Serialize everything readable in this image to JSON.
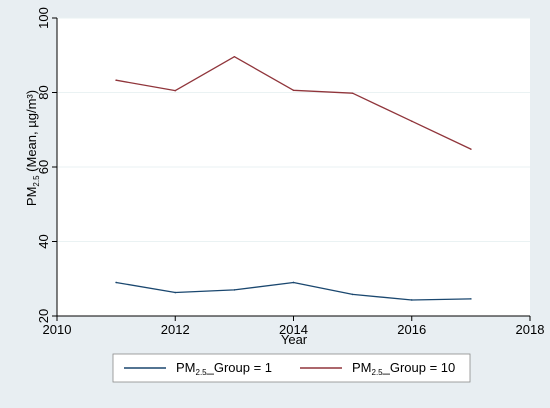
{
  "chart_data": {
    "type": "line",
    "xlabel": "Year",
    "ylabel": {
      "prefix": "PM",
      "subscript": "2.5",
      "suffix": " (Mean, µg/m³)"
    },
    "xlim": [
      2010,
      2018
    ],
    "ylim": [
      20,
      100
    ],
    "xticks": [
      2010,
      2012,
      2014,
      2016,
      2018
    ],
    "yticks": [
      20,
      40,
      60,
      80,
      100
    ],
    "grid": "horizontal",
    "legend_position": "bottom",
    "series": [
      {
        "name": {
          "prefix": "PM",
          "subscript": "2.5",
          "suffix": "_Group = 1"
        },
        "color": "#1a476f",
        "x": [
          2011,
          2012,
          2013,
          2014,
          2015,
          2016,
          2017
        ],
        "y": [
          29.0,
          26.3,
          27.0,
          29.0,
          25.8,
          24.3,
          24.6
        ]
      },
      {
        "name": {
          "prefix": "PM",
          "subscript": "2.5",
          "suffix": "_Group = 10"
        },
        "color": "#90353b",
        "x": [
          2011,
          2012,
          2013,
          2014,
          2015,
          2016,
          2017
        ],
        "y": [
          83.3,
          80.5,
          89.6,
          80.6,
          79.8,
          72.3,
          64.8
        ]
      }
    ]
  }
}
